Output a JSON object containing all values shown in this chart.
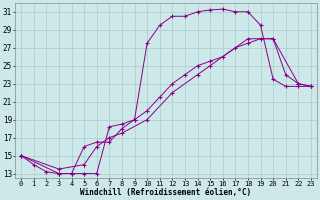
{
  "xlabel": "Windchill (Refroidissement éolien,°C)",
  "line_color": "#880088",
  "bg_color": "#cce8e8",
  "grid_color": "#aacccc",
  "xlim": [
    -0.5,
    23.5
  ],
  "ylim": [
    12.5,
    32.0
  ],
  "xticks": [
    0,
    1,
    2,
    3,
    4,
    5,
    6,
    7,
    8,
    9,
    10,
    11,
    12,
    13,
    14,
    15,
    16,
    17,
    18,
    19,
    20,
    21,
    22,
    23
  ],
  "yticks": [
    13,
    15,
    17,
    19,
    21,
    23,
    25,
    27,
    29,
    31
  ],
  "line1_x": [
    0,
    1,
    2,
    3,
    4,
    5,
    6,
    7,
    8,
    9,
    10,
    11,
    12,
    13,
    14,
    15,
    16,
    17,
    18,
    19,
    20,
    21,
    22,
    23
  ],
  "line1_y": [
    15,
    14,
    13.2,
    13,
    13,
    13,
    13,
    18.2,
    18.5,
    19.0,
    27.5,
    29.5,
    30.5,
    30.5,
    31.0,
    31.2,
    31.3,
    31.0,
    31.0,
    29.5,
    23.5,
    22.7,
    22.7,
    22.7
  ],
  "line2_x": [
    0,
    3,
    4,
    5,
    6,
    7,
    8,
    9,
    10,
    11,
    12,
    13,
    14,
    15,
    16,
    17,
    18,
    19,
    20,
    21,
    22,
    23
  ],
  "line2_y": [
    15,
    13,
    13,
    16,
    16.5,
    16.5,
    18.0,
    19.0,
    20.0,
    21.5,
    23.0,
    24.0,
    25.0,
    25.5,
    26.0,
    27.0,
    27.5,
    28.0,
    28.0,
    24.0,
    23.0,
    22.7
  ],
  "line3_x": [
    0,
    3,
    5,
    6,
    7,
    8,
    10,
    12,
    14,
    15,
    18,
    20,
    22,
    23
  ],
  "line3_y": [
    15,
    13.5,
    14.0,
    16.0,
    17.0,
    17.5,
    19.0,
    22.0,
    24.0,
    25.0,
    28.0,
    28.0,
    23.0,
    22.7
  ],
  "marker": "+",
  "marker_size": 3,
  "linewidth": 0.7,
  "tick_fontsize": 5.0,
  "xlabel_fontsize": 5.5
}
